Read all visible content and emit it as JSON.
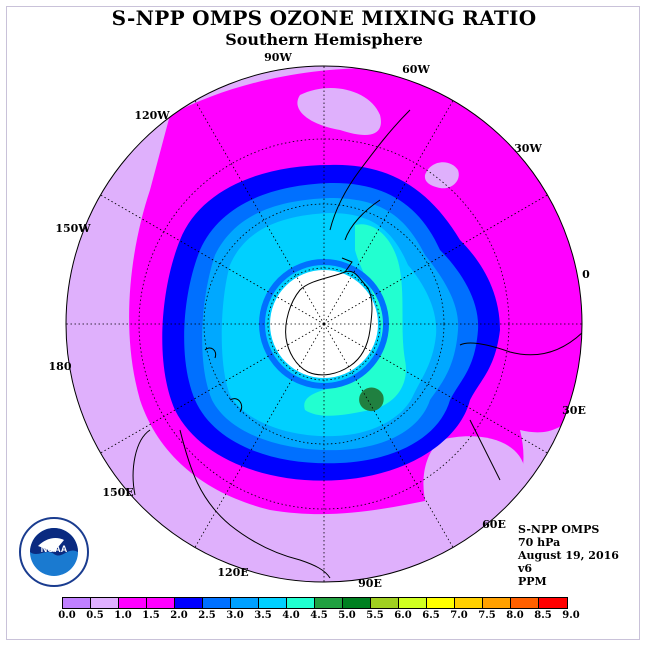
{
  "header": {
    "title": "S-NPP OMPS OZONE MIXING RATIO",
    "subtitle": "Southern Hemisphere"
  },
  "map": {
    "projection": "polar-stereographic-south",
    "meridian_labels": [
      "90W",
      "60W",
      "30W",
      "0",
      "30E",
      "60E",
      "90E",
      "120E",
      "150E",
      "180",
      "150W",
      "120W"
    ]
  },
  "info": {
    "instrument": "S-NPP OMPS",
    "pressure": "70 hPa",
    "date": "August 19, 2016",
    "version": "v6",
    "units": "PPM"
  },
  "logo": {
    "text": "NOAA"
  },
  "colorbar": {
    "ticks": [
      "0.0",
      "0.5",
      "1.0",
      "1.5",
      "2.0",
      "2.5",
      "3.0",
      "3.5",
      "4.0",
      "4.5",
      "5.0",
      "5.5",
      "6.0",
      "6.5",
      "7.0",
      "7.5",
      "8.0",
      "8.5",
      "9.0"
    ],
    "colors": [
      "#c080ff",
      "#e0b0ff",
      "#ff00ff",
      "#ff00ff",
      "#0000ff",
      "#0070ff",
      "#00a0ff",
      "#00d0ff",
      "#20ffd0",
      "#20a040",
      "#008020",
      "#a0d020",
      "#d0ff20",
      "#ffff00",
      "#ffd000",
      "#ffa000",
      "#ff6000",
      "#ff0000",
      "#a06040"
    ]
  },
  "colors": {
    "low_lilac": "#dfb0fc",
    "magenta": "#ff00ff",
    "blue": "#0000ff",
    "mid_blue": "#0070ff",
    "sky_blue": "#00a8ff",
    "cyan": "#00d0ff",
    "aqua": "#22ffd0",
    "green": "#208040"
  }
}
